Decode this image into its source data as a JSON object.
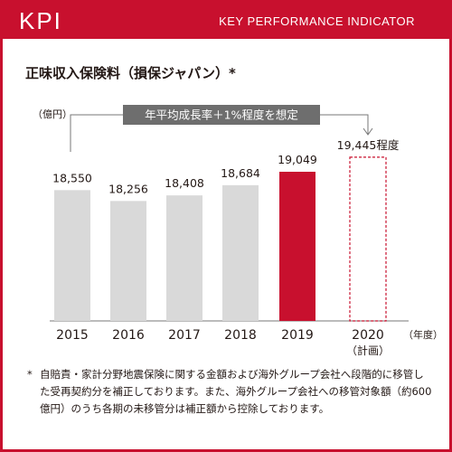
{
  "header": {
    "kpi_label": "KPI",
    "subtitle": "KEY PERFORMANCE INDICATOR"
  },
  "chart_data": {
    "type": "bar",
    "title": "正味収入保険料（損保ジャパン）*",
    "ylabel": "（億円）",
    "xlabel": "（年度）",
    "categories": [
      "2015",
      "2016",
      "2017",
      "2018",
      "2019",
      "2020"
    ],
    "category_sublabels": [
      "",
      "",
      "",
      "",
      "",
      "（計画）"
    ],
    "values": [
      18550,
      18256,
      18408,
      18684,
      19049,
      19445
    ],
    "value_labels": [
      "18,550",
      "18,256",
      "18,408",
      "18,684",
      "19,049",
      "19,445程度"
    ],
    "highlight_index": 4,
    "planned_index": 5,
    "annotation": "年平均成長率＋1%程度を想定",
    "colors": {
      "bar": "#d9d9d9",
      "highlight": "#c8102e",
      "planned_border": "#c8102e",
      "annotation_bg": "#6e6e6e",
      "brand": "#c8102e"
    }
  },
  "footnote": {
    "mark": "*",
    "text": "自賠責・家計分野地震保険に関する金額および海外グループ会社へ段階的に移管した受再契約分を補正しております。また、海外グループ会社への移管対象額（約600億円）のうち各期の未移管分は補正額から控除しております。"
  }
}
